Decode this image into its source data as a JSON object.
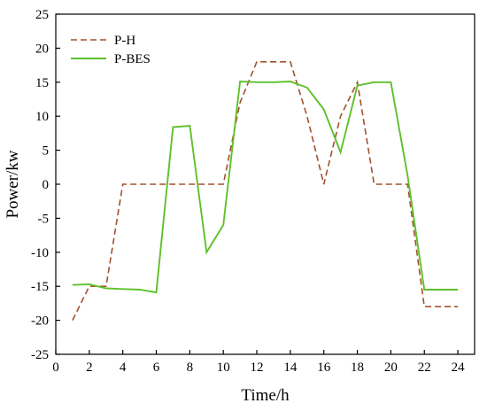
{
  "chart_data": {
    "type": "line",
    "title": "",
    "xlabel": "Time/h",
    "ylabel": "Power/kw",
    "xlim": [
      0,
      25
    ],
    "ylim": [
      -25,
      25
    ],
    "xticks": [
      0,
      2,
      4,
      6,
      8,
      10,
      12,
      14,
      16,
      18,
      20,
      22,
      24
    ],
    "yticks": [
      -25,
      -20,
      -15,
      -10,
      -5,
      0,
      5,
      10,
      15,
      20,
      25
    ],
    "grid": false,
    "legend_position": "top-left",
    "series": [
      {
        "name": "P-H",
        "color": "#a0522d",
        "style": "dashed",
        "x": [
          1,
          2,
          3,
          4,
          5,
          6,
          7,
          8,
          9,
          10,
          11,
          12,
          13,
          14,
          15,
          16,
          17,
          18,
          19,
          20,
          21,
          22,
          23,
          24
        ],
        "y": [
          -20,
          -15,
          -15,
          0,
          0,
          0,
          0,
          0,
          0,
          0,
          12,
          18,
          18,
          18,
          10,
          0,
          10,
          15,
          0,
          0,
          0,
          -18,
          -18,
          -18
        ]
      },
      {
        "name": "P-BES",
        "color": "#5ec12a",
        "style": "solid",
        "x": [
          1,
          2,
          3,
          4,
          5,
          6,
          7,
          8,
          9,
          10,
          11,
          12,
          13,
          14,
          15,
          16,
          17,
          18,
          19,
          20,
          21,
          22,
          23,
          24
        ],
        "y": [
          -14.8,
          -14.7,
          -15.3,
          -15.4,
          -15.5,
          -15.9,
          8.4,
          8.6,
          -10,
          -6,
          15.1,
          15,
          15,
          15.1,
          14.2,
          11,
          4.7,
          14.5,
          15,
          15,
          1.3,
          -15.5,
          -15.5,
          -15.5
        ]
      }
    ]
  }
}
